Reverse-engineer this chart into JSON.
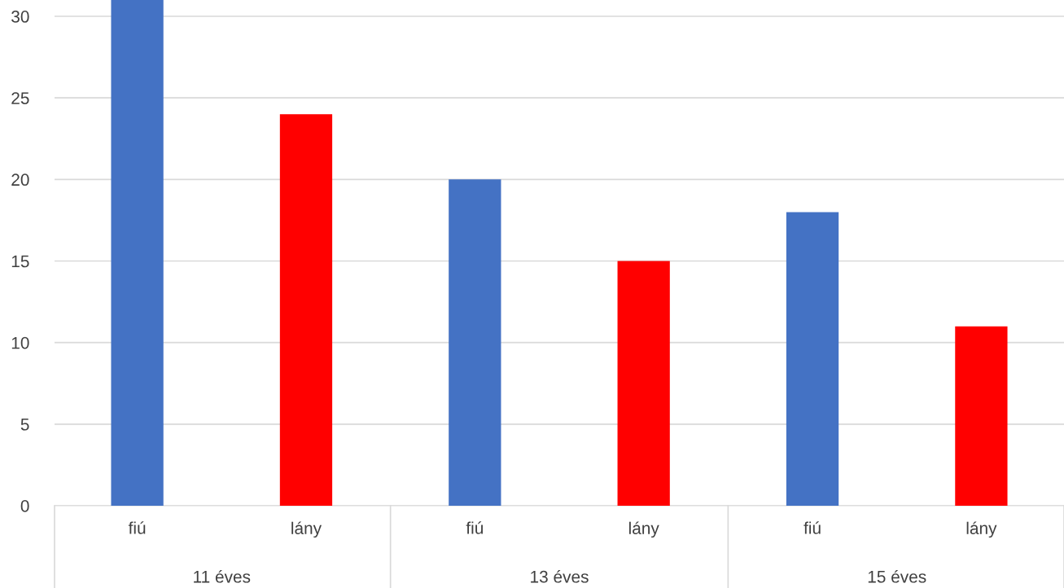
{
  "chart_data": {
    "type": "bar",
    "categories": [
      "fiú",
      "lány",
      "fiú",
      "lány",
      "fiú",
      "lány"
    ],
    "values": [
      31,
      24,
      20,
      15,
      18,
      11
    ],
    "colors": [
      "#4472c4",
      "#ff0000",
      "#4472c4",
      "#ff0000",
      "#4472c4",
      "#ff0000"
    ],
    "annotations": [
      "11 éves",
      "13 éves",
      "15 éves"
    ],
    "ylim": [
      0,
      31
    ],
    "yticks": [
      0,
      5,
      10,
      15,
      20,
      25,
      30
    ],
    "grid": "y"
  }
}
